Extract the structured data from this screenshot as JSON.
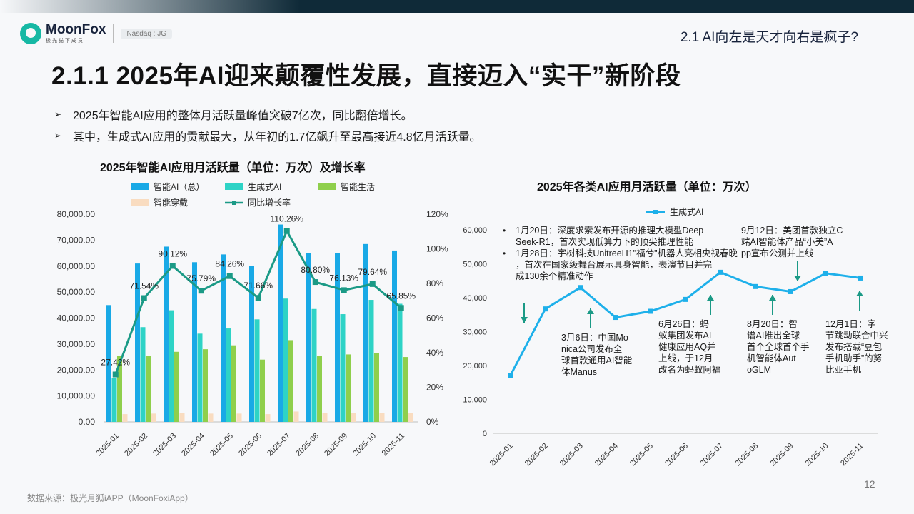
{
  "header": {
    "brand": "MoonFox",
    "brand_sub": "极光猫下成员",
    "ticker": "Nasdaq : JG",
    "section": "2.1 AI向左是天才向右是疯子?"
  },
  "page_title": "2.1.1 2025年AI迎来颠覆性发展，直接迈入“实干”新阶段",
  "bullets": [
    "2025年智能AI应用的整体月活跃量峰值突破7亿次，同比翻倍增长。",
    "其中，生成式AI应用的贡献最大，从年初的1.7亿飙升至最高接近4.8亿月活跃量。"
  ],
  "footer": {
    "source": "数据来源：极光月狐iAPP（MoonFoxiApp）",
    "page": "12"
  },
  "colors": {
    "smart_ai": "#19a9e6",
    "gen_ai": "#2ed3c6",
    "smart_life": "#8fcf4c",
    "wearable": "#f9dcc0",
    "growth": "#1b9a86",
    "line2": "#1eb0ea"
  },
  "chart_data": [
    {
      "type": "bar",
      "title": "2025年智能AI应用月活跃量（单位：万次）及增长率",
      "categories": [
        "2025-01",
        "2025-02",
        "2025-03",
        "2025-04",
        "2025-05",
        "2025-06",
        "2025-07",
        "2025-08",
        "2025-09",
        "2025-10",
        "2025-11"
      ],
      "series": [
        {
          "name": "智能AI（总）",
          "values": [
            45000,
            61000,
            67500,
            61500,
            64500,
            60000,
            76000,
            65000,
            65000,
            68500,
            66000
          ]
        },
        {
          "name": "生成式AI",
          "values": [
            17000,
            36500,
            43000,
            34000,
            36000,
            39500,
            47500,
            43500,
            41500,
            47000,
            45500
          ]
        },
        {
          "name": "智能生活",
          "values": [
            25500,
            25500,
            27000,
            28000,
            29500,
            24000,
            31500,
            25500,
            26000,
            26500,
            25000
          ]
        },
        {
          "name": "智能穿戴",
          "values": [
            3000,
            3200,
            3300,
            3200,
            3200,
            3000,
            4000,
            3400,
            3500,
            3500,
            3300
          ]
        }
      ],
      "growth": {
        "name": "同比增长率",
        "values": [
          27.42,
          71.54,
          90.12,
          75.79,
          84.26,
          71.66,
          110.26,
          80.8,
          76.13,
          79.64,
          65.85
        ],
        "labels": [
          "27.42%",
          "71.54%",
          "90.12%",
          "75.79%",
          "84.26%",
          "71.66%",
          "110.26%",
          "80.80%",
          "76.13%",
          "79.64%",
          "65.85%"
        ]
      },
      "y_left": {
        "lim": [
          0,
          80000
        ],
        "ticks": [
          "0.00",
          "10,000.00",
          "20,000.00",
          "30,000.00",
          "40,000.00",
          "50,000.00",
          "60,000.00",
          "70,000.00",
          "80,000.00"
        ]
      },
      "y_right": {
        "lim": [
          0,
          120
        ],
        "ticks": [
          "0%",
          "20%",
          "40%",
          "60%",
          "80%",
          "100%",
          "120%"
        ]
      },
      "legend": [
        "智能AI（总）",
        "生成式AI",
        "智能生活",
        "智能穿戴",
        "同比增长率"
      ]
    },
    {
      "type": "line",
      "title": "2025年各类AI应用月活跃量（单位：万次）",
      "categories": [
        "2025-01",
        "2025-02",
        "2025-03",
        "2025-04",
        "2025-05",
        "2025-06",
        "2025-07",
        "2025-08",
        "2025-09",
        "2025-10",
        "2025-11"
      ],
      "series": [
        {
          "name": "生成式AI",
          "values": [
            17000,
            36700,
            43000,
            34200,
            36000,
            39500,
            47500,
            43300,
            41800,
            47200,
            45800
          ]
        }
      ],
      "y": {
        "lim": [
          0,
          60000
        ],
        "ticks": [
          "0",
          "10,000",
          "20,000",
          "30,000",
          "40,000",
          "50,000",
          "60,000"
        ]
      },
      "legend": [
        "生成式AI"
      ],
      "annotations": {
        "jan_bullets": [
          "1月20日：深度求索发布开源的推理大模型DeepSeek-R1，首次实现低算力下的顶尖推理性能",
          "1月28日：宇树科技UnitreeH1\"福兮\"机器人亮相央视春晚，首次在国家级舞台展示具身智能，表演节目并完成130余个精准动作"
        ],
        "mar": "3月6日：中国Monica公司发布全球首款通用AI智能体Manus",
        "jun": "6月26日：蚂蚁集团发布AI健康应用AQ并上线，于12月改名为蚂蚁阿福",
        "aug": "8月20日：智谱AI推出全球首个全球首个手机智能体AutoGLM",
        "sep": "9月12日：美团首款独立C端AI智能体产品“小美”App宣布公测并上线",
        "nov": "12月1日：字节跳动联合中兴发布搭载“豆包手机助手”的努比亚手机"
      }
    }
  ]
}
